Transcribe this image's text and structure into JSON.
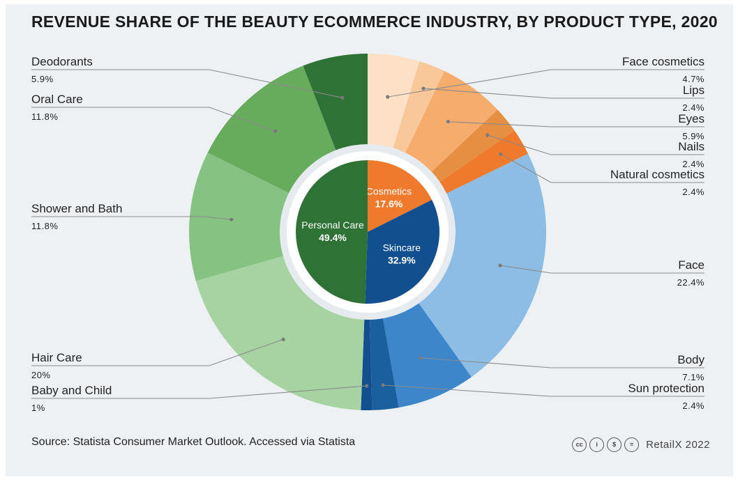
{
  "title": "REVENUE SHARE OF THE BEAUTY ECOMMERCE INDUSTRY, BY PRODUCT TYPE, 2020",
  "source": "Source: Statista Consumer Market Outlook. Accessed via Statista",
  "credit": {
    "icons": [
      "cc-icon",
      "by-icon",
      "nc-icon",
      "nd-icon"
    ],
    "icon_glyphs": [
      "cc",
      "i",
      "$",
      "="
    ],
    "text": "RetailX 2022"
  },
  "chart_data": {
    "type": "pie",
    "variant": "nested-donut",
    "title": "REVENUE SHARE OF THE BEAUTY ECOMMERCE INDUSTRY, BY PRODUCT TYPE, 2020",
    "inner": [
      {
        "name": "Cosmetics",
        "label": "17.6%",
        "value": 17.6,
        "color": "#f07a2c"
      },
      {
        "name": "Skincare",
        "label": "32.9%",
        "value": 32.9,
        "color": "#124f8f"
      },
      {
        "name": "Personal Care",
        "label": "49.4%",
        "value": 49.4,
        "color": "#2e7235"
      }
    ],
    "outer": [
      {
        "name": "Face cosmetics",
        "label": "4.7%",
        "value": 4.7,
        "color": "#fde0c6",
        "side": "right"
      },
      {
        "name": "Lips",
        "label": "2.4%",
        "value": 2.4,
        "color": "#f9c89a",
        "side": "right"
      },
      {
        "name": "Eyes",
        "label": "5.9%",
        "value": 5.9,
        "color": "#f6ac6c",
        "side": "right"
      },
      {
        "name": "Nails",
        "label": "2.4%",
        "value": 2.4,
        "color": "#e58f42",
        "side": "right"
      },
      {
        "name": "Natural cosmetics",
        "label": "2.4%",
        "value": 2.4,
        "color": "#f07a2c",
        "side": "right"
      },
      {
        "name": "Face",
        "label": "22.4%",
        "value": 22.4,
        "color": "#8dbce4",
        "side": "right"
      },
      {
        "name": "Body",
        "label": "7.1%",
        "value": 7.1,
        "color": "#3c86c9",
        "side": "right"
      },
      {
        "name": "Sun protection",
        "label": "2.4%",
        "value": 2.4,
        "color": "#1a5f9e",
        "side": "right"
      },
      {
        "name": "Baby and Child",
        "label": "1%",
        "value": 1.0,
        "color": "#124f8f",
        "side": "left"
      },
      {
        "name": "Hair Care",
        "label": "20%",
        "value": 20.0,
        "color": "#a7d3a2",
        "side": "left"
      },
      {
        "name": "Shower and Bath",
        "label": "11.8%",
        "value": 11.8,
        "color": "#86c383",
        "side": "left"
      },
      {
        "name": "Oral Care",
        "label": "11.8%",
        "value": 11.8,
        "color": "#67ac5c",
        "side": "left"
      },
      {
        "name": "Deodorants",
        "label": "5.9%",
        "value": 5.9,
        "color": "#2e7235",
        "side": "left"
      }
    ]
  }
}
